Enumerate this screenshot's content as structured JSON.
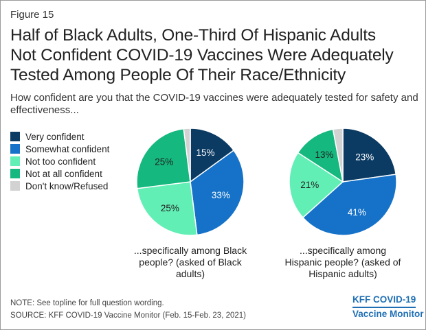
{
  "figure_label": "Figure 15",
  "title_lines": [
    "Half of Black Adults, One-Third Of Hispanic Adults",
    "Not Confident COVID-19 Vaccines Were Adequately",
    "Tested Among People Of Their Race/Ethnicity"
  ],
  "subtitle": "How confident are you that the COVID-19 vaccines were adequately tested for safety and effectiveness...",
  "legend": [
    {
      "label": "Very confident",
      "color": "#0b3a63"
    },
    {
      "label": "Somewhat confident",
      "color": "#1572c8"
    },
    {
      "label": "Not too confident",
      "color": "#62efb5"
    },
    {
      "label": "Not at all confident",
      "color": "#15b87e"
    },
    {
      "label": "Don't know/Refused",
      "color": "#d2d2d2"
    }
  ],
  "chart_data": [
    {
      "type": "pie",
      "caption_lines": [
        "...specifically among Black",
        "people? (asked of Black",
        "adults)"
      ],
      "slices": [
        {
          "category": "Very confident",
          "value": 15,
          "label": "15%"
        },
        {
          "category": "Somewhat confident",
          "value": 33,
          "label": "33%"
        },
        {
          "category": "Not too confident",
          "value": 25,
          "label": "25%"
        },
        {
          "category": "Not at all confident",
          "value": 25,
          "label": "25%"
        },
        {
          "category": "Don't know/Refused",
          "value": 2,
          "label": ""
        }
      ]
    },
    {
      "type": "pie",
      "caption_lines": [
        "...specifically among",
        "Hispanic people? (asked of",
        "Hispanic adults)"
      ],
      "slices": [
        {
          "category": "Very confident",
          "value": 23,
          "label": "23%"
        },
        {
          "category": "Somewhat confident",
          "value": 41,
          "label": "41%"
        },
        {
          "category": "Not too confident",
          "value": 21,
          "label": "21%"
        },
        {
          "category": "Not at all confident",
          "value": 13,
          "label": "13%"
        },
        {
          "category": "Don't know/Refused",
          "value": 3,
          "label": ""
        }
      ]
    }
  ],
  "note": "NOTE: See topline for full question wording.",
  "source": "SOURCE: KFF COVID-19 Vaccine Monitor (Feb. 15-Feb. 23, 2021)",
  "logo": {
    "line1": "KFF COVID-19",
    "line2": "Vaccine Monitor"
  }
}
